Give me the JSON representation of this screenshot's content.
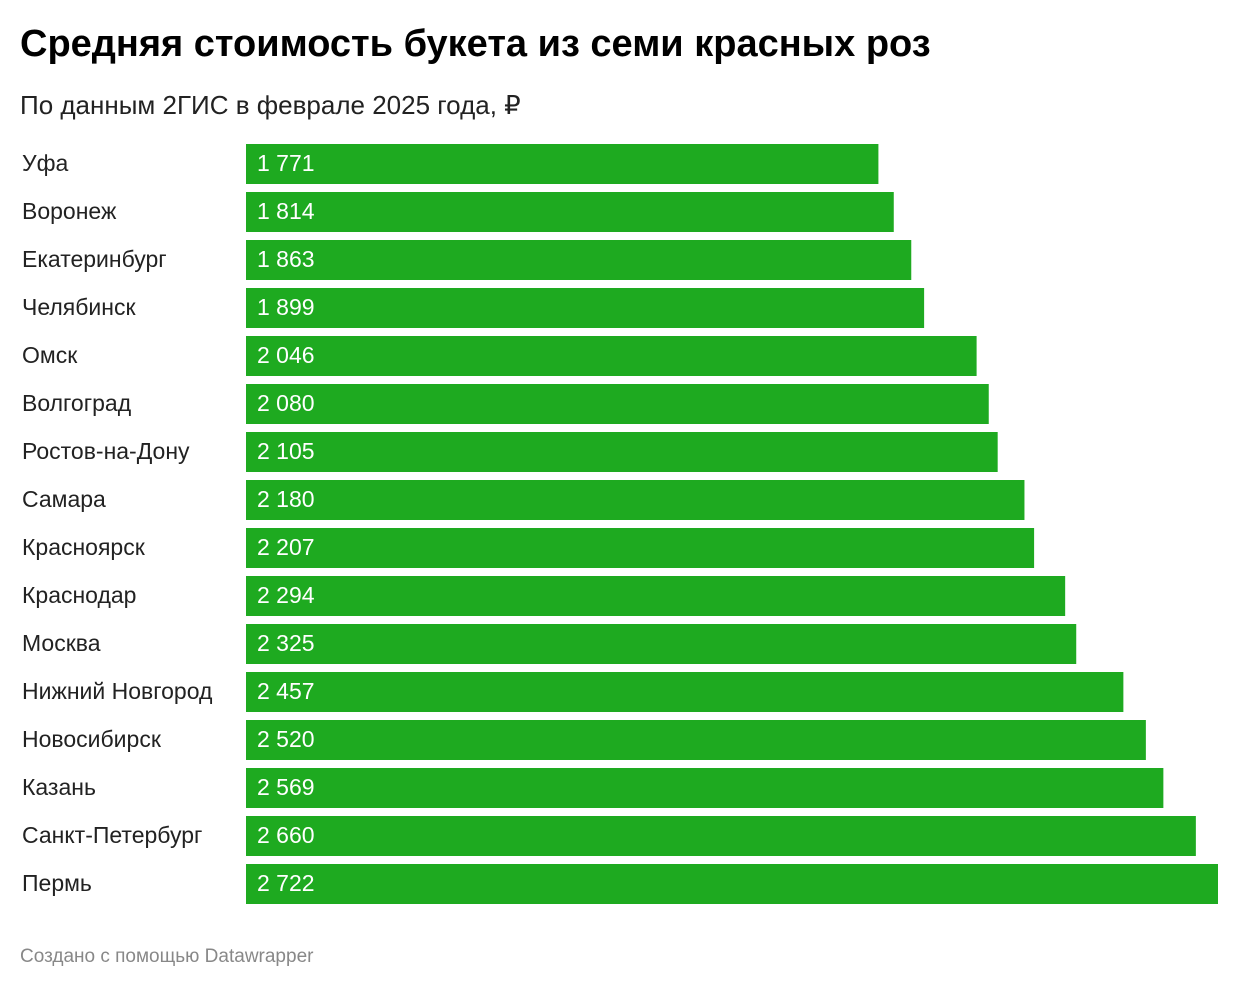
{
  "chart_data": {
    "type": "bar",
    "orientation": "horizontal",
    "title": "Средняя стоимость букета из семи красных роз",
    "subtitle": "По данным 2ГИС в феврале 2025 года, ₽",
    "credit": "Создано с помощью Datawrapper",
    "color": "#1eaa20",
    "categories": [
      "Уфа",
      "Воронеж",
      "Екатеринбург",
      "Челябинск",
      "Омск",
      "Волгоград",
      "Ростов-на-Дону",
      "Самара",
      "Красноярск",
      "Краснодар",
      "Москва",
      "Нижний Новгород",
      "Новосибирск",
      "Казань",
      "Санкт-Петербург",
      "Пермь"
    ],
    "values": [
      1771,
      1814,
      1863,
      1899,
      2046,
      2080,
      2105,
      2180,
      2207,
      2294,
      2325,
      2457,
      2520,
      2569,
      2660,
      2722
    ],
    "value_labels": [
      "1 771",
      "1 814",
      "1 863",
      "1 899",
      "2 046",
      "2 080",
      "2 105",
      "2 180",
      "2 207",
      "2 294",
      "2 325",
      "2 457",
      "2 520",
      "2 569",
      "2 660",
      "2 722"
    ]
  }
}
